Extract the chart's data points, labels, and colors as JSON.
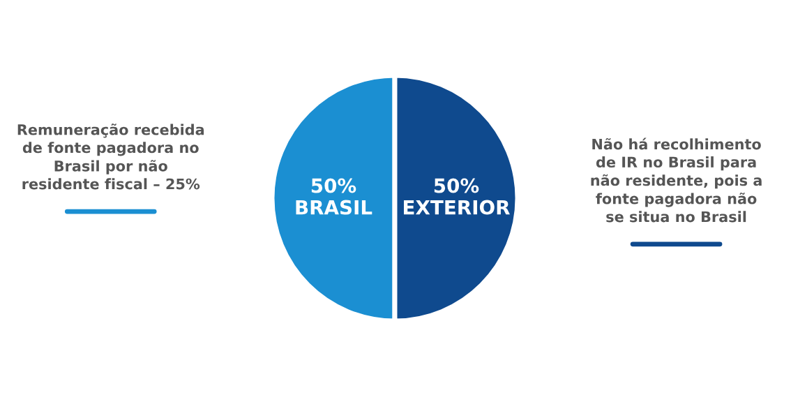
{
  "chart_data": {
    "type": "pie",
    "categories": [
      "BRASIL",
      "EXTERIOR"
    ],
    "values": [
      50,
      50
    ],
    "value_labels": [
      "50%",
      "50%"
    ],
    "colors": [
      "#1b8fd2",
      "#0f4a8e"
    ],
    "annotations": [
      "Remuneração recebida\nde fonte pagadora no\nBrasil por não\nresidente fiscal – 25%",
      "Não há recolhimento\nde IR no Brasil para\nnão residente, pois a\nfonte pagadora não\nse situa no Brasil"
    ],
    "legend": false
  }
}
